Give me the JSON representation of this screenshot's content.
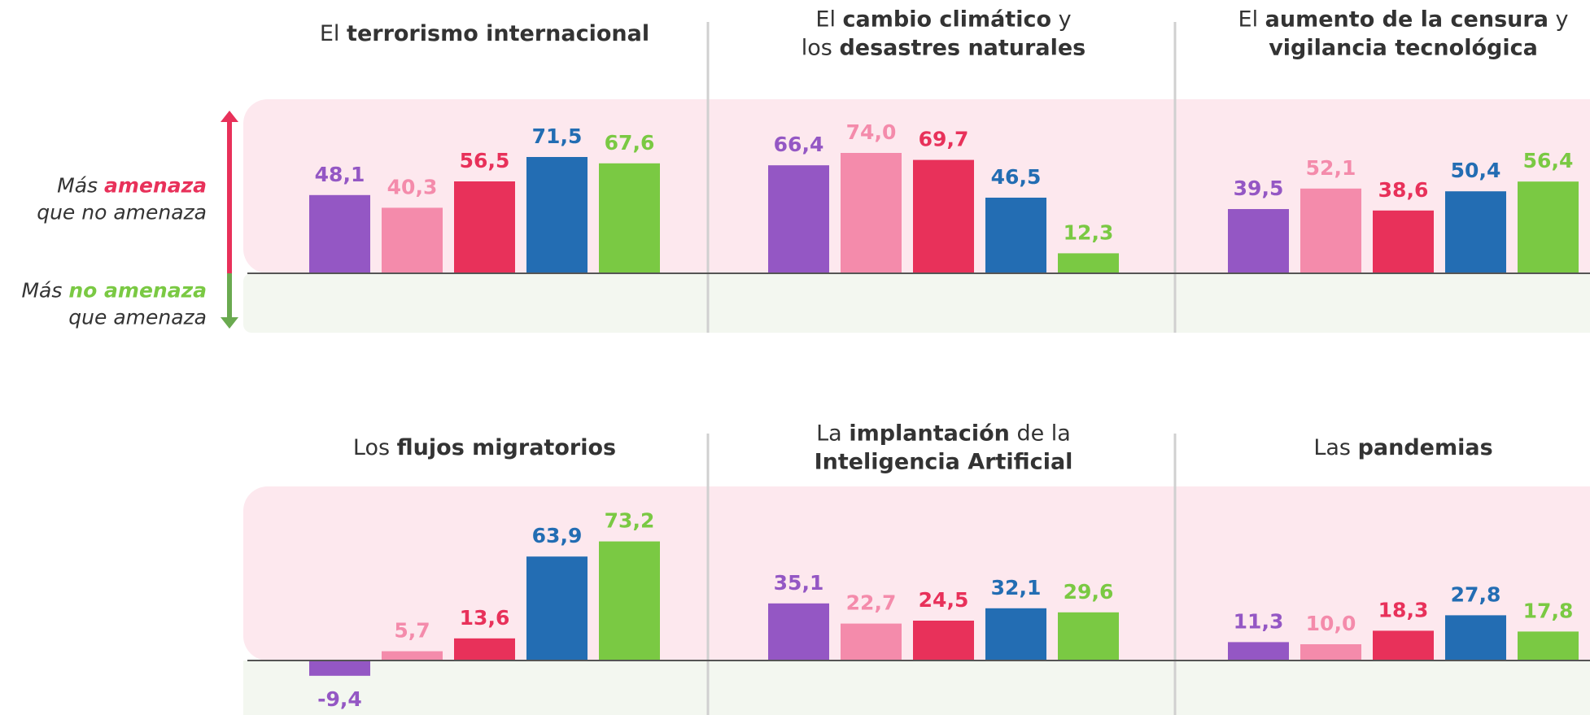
{
  "legend": {
    "more_threat": [
      [
        {
          "text": "Más "
        },
        {
          "text": "amenaza",
          "bold": true,
          "color": "#e8315a"
        }
      ],
      [
        {
          "text": "que no amenaza"
        }
      ]
    ],
    "more_no_threat": [
      [
        {
          "text": "Más "
        },
        {
          "text": "no amenaza",
          "bold": true,
          "color": "#7ac943"
        }
      ],
      [
        {
          "text": "que amenaza"
        }
      ]
    ]
  },
  "chart_data": [
    {
      "type": "bar",
      "title": [
        [
          {
            "text": "El "
          },
          {
            "text": "terrorismo internacional",
            "bold": true
          }
        ]
      ],
      "values": [
        48.1,
        40.3,
        56.5,
        71.5,
        67.6
      ],
      "value_labels": [
        "48,1",
        "40,3",
        "56,5",
        "71,5",
        "67,6"
      ],
      "colors": [
        "#9457c4",
        "#f48bab",
        "#e8315a",
        "#236db3",
        "#7ac943"
      ]
    },
    {
      "type": "bar",
      "title": [
        [
          {
            "text": "El "
          },
          {
            "text": "cambio climático",
            "bold": true
          },
          {
            "text": " y"
          }
        ],
        [
          {
            "text": "los "
          },
          {
            "text": "desastres naturales",
            "bold": true
          }
        ]
      ],
      "values": [
        66.4,
        74.0,
        69.7,
        46.5,
        12.3
      ],
      "value_labels": [
        "66,4",
        "74,0",
        "69,7",
        "46,5",
        "12,3"
      ],
      "colors": [
        "#9457c4",
        "#f48bab",
        "#e8315a",
        "#236db3",
        "#7ac943"
      ]
    },
    {
      "type": "bar",
      "title": [
        [
          {
            "text": "El "
          },
          {
            "text": "aumento de la censura",
            "bold": true
          },
          {
            "text": " y"
          }
        ],
        [
          {
            "text": "vigilancia tecnológica",
            "bold": true
          }
        ]
      ],
      "values": [
        39.5,
        52.1,
        38.6,
        50.4,
        56.4
      ],
      "value_labels": [
        "39,5",
        "52,1",
        "38,6",
        "50,4",
        "56,4"
      ],
      "colors": [
        "#9457c4",
        "#f48bab",
        "#e8315a",
        "#236db3",
        "#7ac943"
      ]
    },
    {
      "type": "bar",
      "title": [
        [
          {
            "text": "Los "
          },
          {
            "text": "flujos migratorios",
            "bold": true
          }
        ]
      ],
      "values": [
        -9.4,
        5.7,
        13.6,
        63.9,
        73.2
      ],
      "value_labels": [
        "-9,4",
        "5,7",
        "13,6",
        "63,9",
        "73,2"
      ],
      "colors": [
        "#9457c4",
        "#f48bab",
        "#e8315a",
        "#236db3",
        "#7ac943"
      ]
    },
    {
      "type": "bar",
      "title": [
        [
          {
            "text": "La "
          },
          {
            "text": "implantación",
            "bold": true
          },
          {
            "text": " de la"
          }
        ],
        [
          {
            "text": "Inteligencia Artificial",
            "bold": true
          }
        ]
      ],
      "values": [
        35.1,
        22.7,
        24.5,
        32.1,
        29.6
      ],
      "value_labels": [
        "35,1",
        "22,7",
        "24,5",
        "32,1",
        "29,6"
      ],
      "colors": [
        "#9457c4",
        "#f48bab",
        "#e8315a",
        "#236db3",
        "#7ac943"
      ]
    },
    {
      "type": "bar",
      "title": [
        [
          {
            "text": "Las "
          },
          {
            "text": "pandemias",
            "bold": true
          }
        ]
      ],
      "values": [
        11.3,
        10.0,
        18.3,
        27.8,
        17.8
      ],
      "value_labels": [
        "11,3",
        "10,0",
        "18,3",
        "27,8",
        "17,8"
      ],
      "colors": [
        "#9457c4",
        "#f48bab",
        "#e8315a",
        "#236db3",
        "#7ac943"
      ]
    }
  ]
}
